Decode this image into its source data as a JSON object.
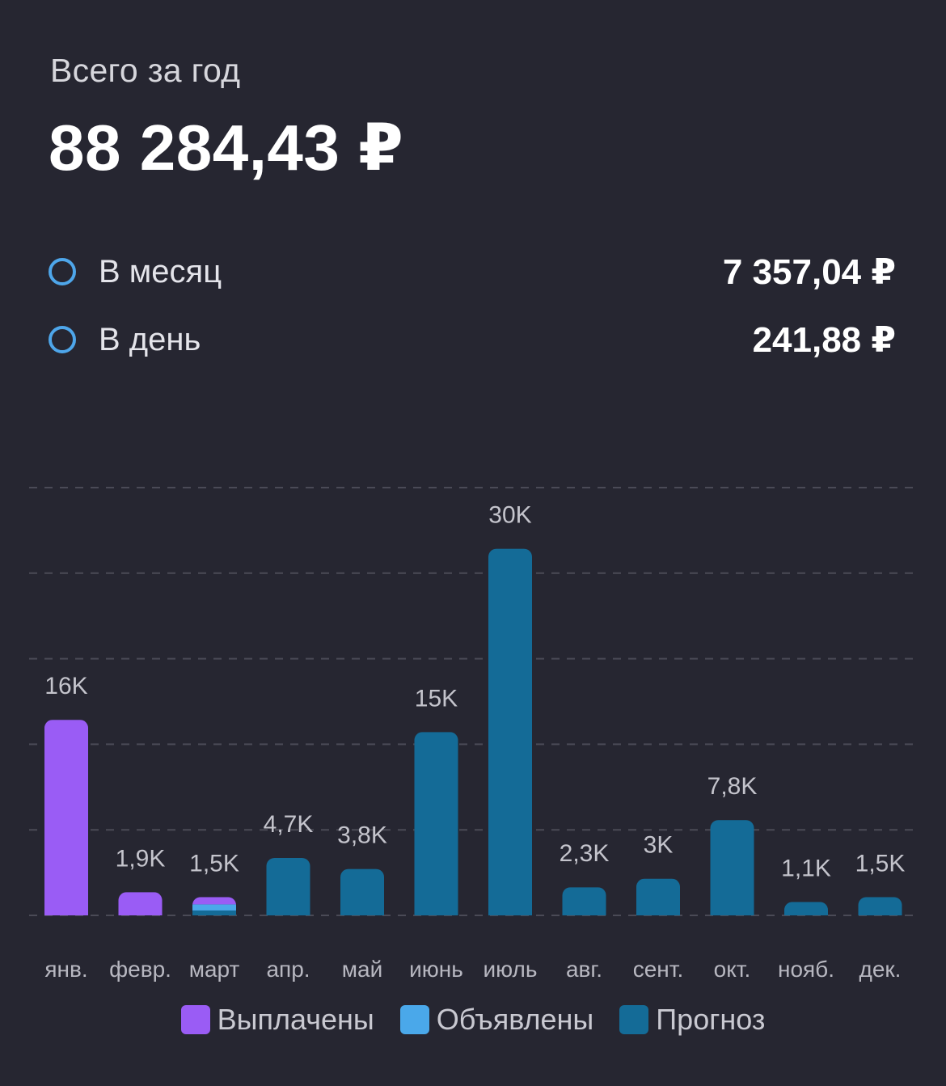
{
  "summary": {
    "total_label": "Всего за год",
    "total_value": "88 284,43 ₽",
    "rows": [
      {
        "label": "В месяц",
        "value": "7 357,04 ₽"
      },
      {
        "label": "В день",
        "value": "241,88 ₽"
      }
    ]
  },
  "colors": {
    "background": "#262631",
    "paid": "#9a5cf5",
    "announced": "#4aa8ea",
    "forecast": "#146b97",
    "radio": "#4ea6ea"
  },
  "chart_data": {
    "type": "bar",
    "stacked": true,
    "categories": [
      "янв.",
      "февр.",
      "март",
      "апр.",
      "май",
      "июнь",
      "июль",
      "авг.",
      "сент.",
      "окт.",
      "нояб.",
      "дек."
    ],
    "series": [
      {
        "name": "Выплачены",
        "color": "#9a5cf5",
        "values": [
          16000,
          1900,
          600,
          0,
          0,
          0,
          0,
          0,
          0,
          0,
          0,
          0
        ]
      },
      {
        "name": "Объявлены",
        "color": "#4aa8ea",
        "values": [
          0,
          0,
          500,
          0,
          0,
          0,
          0,
          0,
          0,
          0,
          0,
          0
        ]
      },
      {
        "name": "Прогноз",
        "color": "#146b97",
        "values": [
          0,
          0,
          400,
          4700,
          3800,
          15000,
          30000,
          2300,
          3000,
          7800,
          1100,
          1500
        ]
      }
    ],
    "data_labels": [
      "16K",
      "1,9K",
      "1,5K",
      "4,7K",
      "3,8K",
      "15K",
      "30K",
      "2,3K",
      "3K",
      "7,8K",
      "1,1K",
      "1,5K"
    ],
    "ylim": [
      0,
      35000
    ],
    "grid": true
  }
}
